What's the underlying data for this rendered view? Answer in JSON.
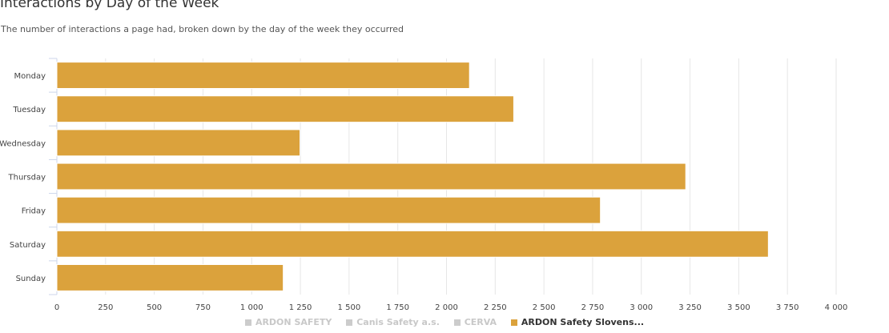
{
  "title": "Interactions by Day of the Week",
  "subtitle": "The number of interactions a page had, broken down by the day of the week they occurred",
  "legend": [
    {
      "label": "ARDON SAFETY",
      "active": false
    },
    {
      "label": "Canis Safety a.s.",
      "active": false
    },
    {
      "label": "CERVA",
      "active": false
    },
    {
      "label": "ARDON Safety Slovens...",
      "active": true
    }
  ],
  "chart_data": {
    "type": "bar",
    "orientation": "horizontal",
    "categories": [
      "Monday",
      "Tuesday",
      "Wednesday",
      "Thursday",
      "Friday",
      "Saturday",
      "Sunday"
    ],
    "series": [
      {
        "name": "ARDON Safety Slovens...",
        "color": "#dba23c",
        "values": [
          2118,
          2345,
          1248,
          3228,
          2790,
          3652,
          1162
        ]
      }
    ],
    "xlim": [
      0,
      4000
    ],
    "ticks": [
      0,
      250,
      500,
      750,
      1000,
      1250,
      1500,
      1750,
      2000,
      2250,
      2500,
      2750,
      3000,
      3250,
      3500,
      3750,
      4000
    ],
    "tick_labels": [
      "0",
      "250",
      "500",
      "750",
      "1 000",
      "1 250",
      "1 500",
      "1 750",
      "2 000",
      "2 250",
      "2 500",
      "2 750",
      "3 000",
      "3 250",
      "3 500",
      "3 750",
      "4 000"
    ],
    "grid": true,
    "legend_position": "bottom"
  }
}
